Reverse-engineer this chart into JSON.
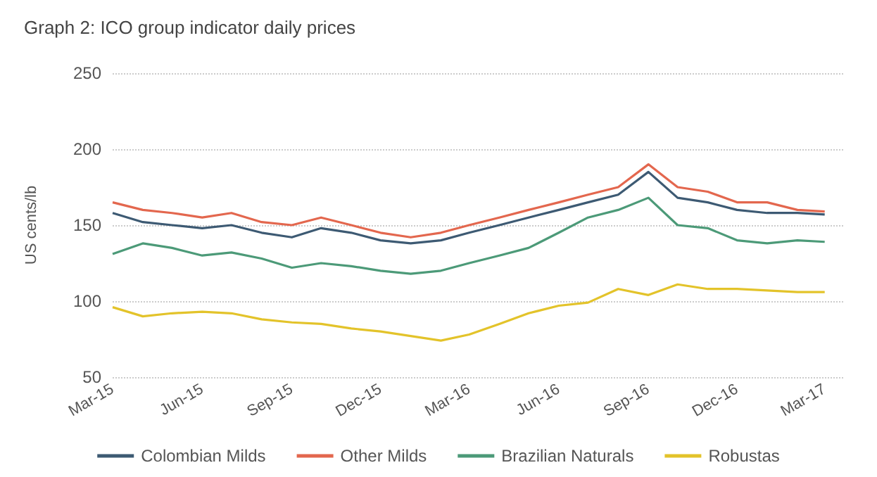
{
  "chart_data": {
    "type": "line",
    "title": "Graph 2: ICO group indicator daily prices",
    "ylabel": "US cents/lb",
    "x": [
      "2015-03-01",
      "2015-04-01",
      "2015-05-01",
      "2015-06-01",
      "2015-07-01",
      "2015-08-01",
      "2015-09-01",
      "2015-10-01",
      "2015-11-01",
      "2015-12-01",
      "2016-01-01",
      "2016-02-01",
      "2016-03-01",
      "2016-04-01",
      "2016-05-01",
      "2016-06-01",
      "2016-07-01",
      "2016-08-01",
      "2016-09-01",
      "2016-10-01",
      "2016-11-01",
      "2016-12-01",
      "2017-01-01",
      "2017-02-01",
      "2017-03-01"
    ],
    "series": [
      {
        "name": "Colombian Milds",
        "color": "#3d5a73",
        "values": [
          158,
          152,
          150,
          148,
          150,
          145,
          142,
          148,
          145,
          140,
          138,
          140,
          145,
          150,
          155,
          160,
          165,
          170,
          185,
          168,
          165,
          160,
          158,
          158,
          157
        ]
      },
      {
        "name": "Other Milds",
        "color": "#e3674e",
        "values": [
          165,
          160,
          158,
          155,
          158,
          152,
          150,
          155,
          150,
          145,
          142,
          145,
          150,
          155,
          160,
          165,
          170,
          175,
          190,
          175,
          172,
          165,
          165,
          160,
          159
        ]
      },
      {
        "name": "Brazilian Naturals",
        "color": "#4c9a78",
        "values": [
          131,
          138,
          135,
          130,
          132,
          128,
          122,
          125,
          123,
          120,
          118,
          120,
          125,
          130,
          135,
          145,
          155,
          160,
          168,
          150,
          148,
          140,
          138,
          140,
          139
        ]
      },
      {
        "name": "Robustas",
        "color": "#e3c32a",
        "values": [
          96,
          90,
          92,
          93,
          92,
          88,
          86,
          85,
          82,
          80,
          77,
          74,
          78,
          85,
          92,
          97,
          99,
          108,
          104,
          111,
          108,
          108,
          107,
          106,
          106
        ]
      }
    ],
    "xlim": [
      "2015-03-01",
      "2017-03-20"
    ],
    "xticks": [
      {
        "value": "2015-03-01",
        "label": "Mar-15"
      },
      {
        "value": "2015-06-01",
        "label": "Jun-15"
      },
      {
        "value": "2015-09-01",
        "label": "Sep-15"
      },
      {
        "value": "2015-12-01",
        "label": "Dec-15"
      },
      {
        "value": "2016-03-01",
        "label": "Mar-16"
      },
      {
        "value": "2016-06-01",
        "label": "Jun-16"
      },
      {
        "value": "2016-09-01",
        "label": "Sep-16"
      },
      {
        "value": "2016-12-01",
        "label": "Dec-16"
      },
      {
        "value": "2017-03-01",
        "label": "Mar-17"
      }
    ],
    "ylim": [
      50,
      250
    ],
    "yticks": [
      50,
      100,
      150,
      200,
      250
    ],
    "grid": "y",
    "legend": "bottom",
    "marker": "none",
    "line_style": "solid"
  }
}
